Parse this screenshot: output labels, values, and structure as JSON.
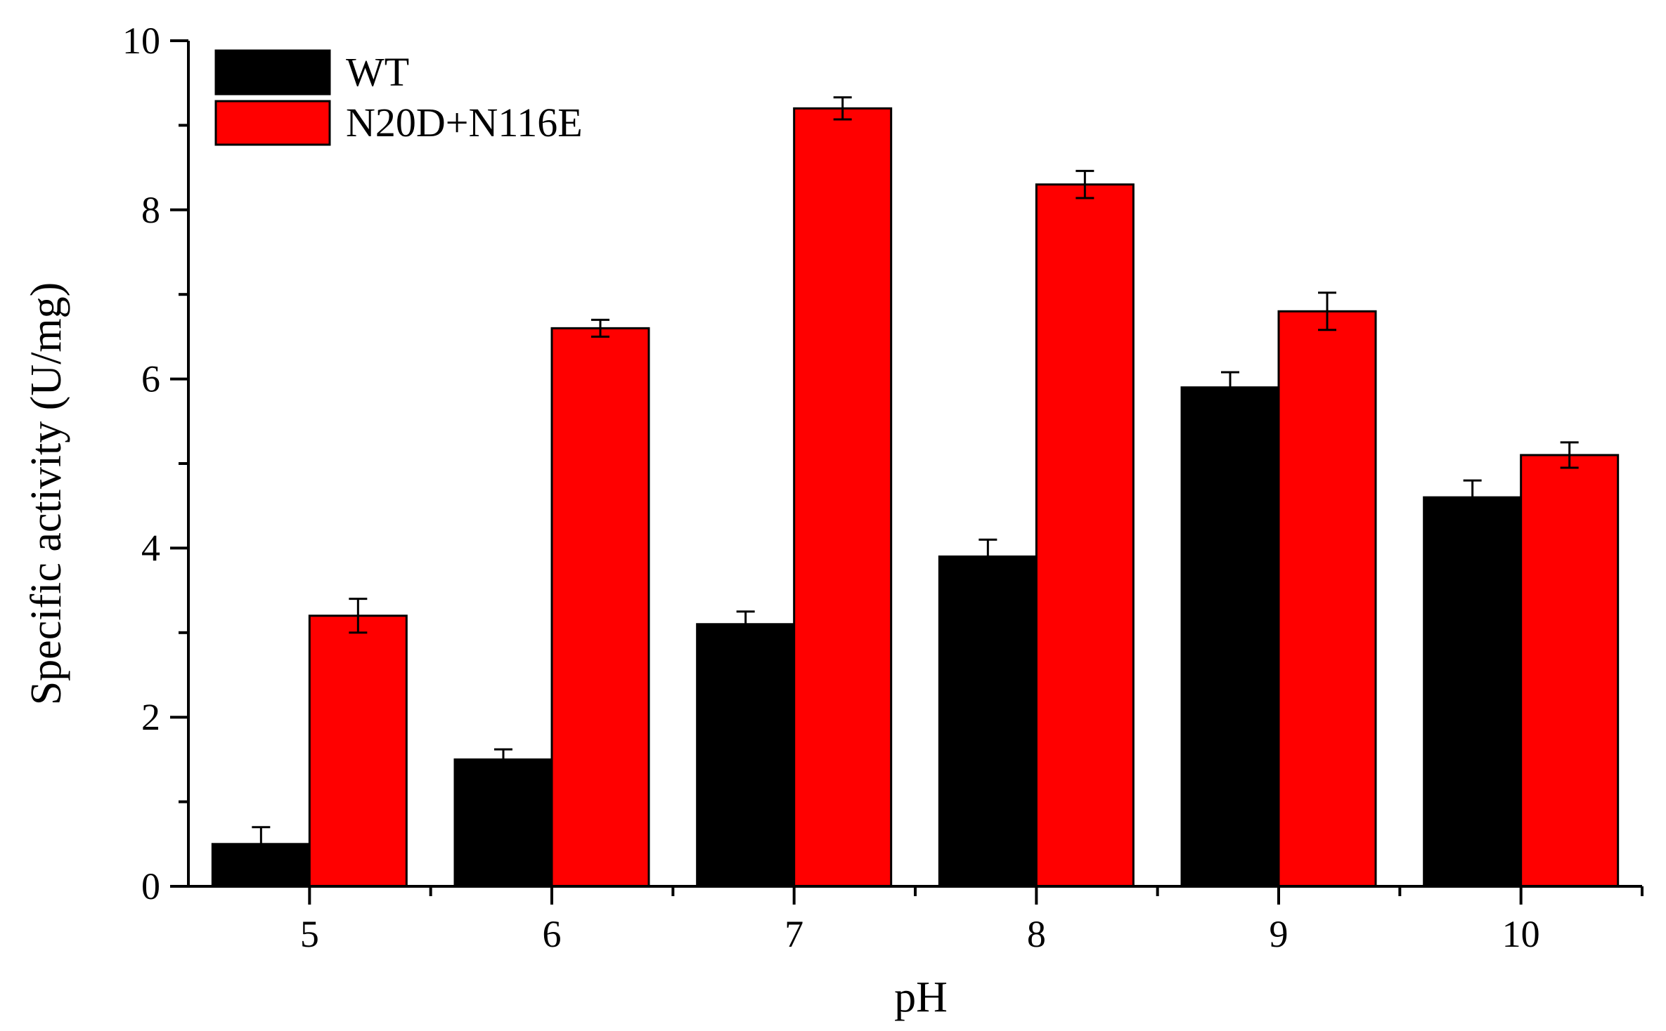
{
  "chart_data": {
    "type": "bar",
    "xlabel": "pH",
    "ylabel": "Specific activity (U/mg)",
    "categories": [
      "5",
      "6",
      "7",
      "8",
      "9",
      "10"
    ],
    "ylim": [
      0,
      10
    ],
    "yticks": [
      0,
      2,
      4,
      6,
      8,
      10
    ],
    "grid": false,
    "legend_position": "top-left",
    "series": [
      {
        "name": "WT",
        "color": "#000000",
        "values": [
          0.5,
          1.5,
          3.1,
          3.9,
          5.9,
          4.6
        ],
        "errors": [
          0.2,
          0.12,
          0.15,
          0.2,
          0.18,
          0.2
        ]
      },
      {
        "name": "N20D+N116E",
        "color": "#ff0000",
        "values": [
          3.2,
          6.6,
          9.2,
          8.3,
          6.8,
          5.1
        ],
        "errors": [
          0.2,
          0.1,
          0.13,
          0.16,
          0.22,
          0.15
        ]
      }
    ]
  }
}
